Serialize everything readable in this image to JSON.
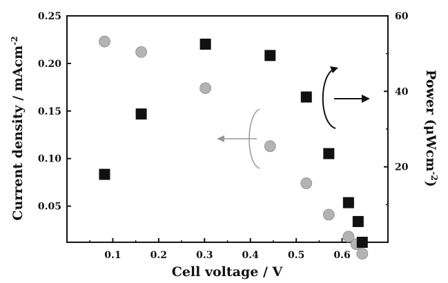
{
  "chart_data": {
    "type": "scatter",
    "xlabel": "Cell voltage / V",
    "ylabel_left": "Current density / mAcm",
    "ylabel_left_sup": "-2",
    "ylabel_right": "Power (μWcm",
    "ylabel_right_sup": "-2",
    "ylabel_right_end": ")",
    "xlim": [
      0.0,
      0.7
    ],
    "ylim_left": [
      0.012,
      0.25
    ],
    "ylim_right": [
      0,
      60
    ],
    "x_ticks": [
      0.1,
      0.2,
      0.3,
      0.4,
      0.5,
      0.6
    ],
    "x_tick_labels": [
      "0.1",
      "0.2",
      "0.3",
      "0.4",
      "0.5",
      "0.6"
    ],
    "y_left_ticks": [
      0.05,
      0.1,
      0.15,
      0.2,
      0.25
    ],
    "y_left_tick_labels": [
      "0.05",
      "0.10",
      "0.15",
      "0.20",
      "0.25"
    ],
    "y_right_ticks": [
      20,
      40,
      60
    ],
    "y_right_tick_labels": [
      "20",
      "40",
      "60"
    ],
    "series": [
      {
        "axis": "left",
        "marker": "circle",
        "color": "#b3b3b3",
        "x": [
          0.082,
          0.162,
          0.302,
          0.443,
          0.522,
          0.571,
          0.614,
          0.631,
          0.644
        ],
        "y": [
          0.223,
          0.212,
          0.174,
          0.113,
          0.074,
          0.041,
          0.018,
          0.01,
          0.0
        ]
      },
      {
        "axis": "right",
        "marker": "square",
        "color": "#111111",
        "x": [
          0.082,
          0.162,
          0.302,
          0.443,
          0.522,
          0.571,
          0.614,
          0.635,
          0.644
        ],
        "y": [
          18,
          34,
          52.5,
          49.5,
          38.5,
          23.5,
          10.5,
          5.5,
          0
        ]
      }
    ],
    "annotations": [
      {
        "type": "arrow-left",
        "target": "left-axis",
        "color": "#999999"
      },
      {
        "type": "arrow-right",
        "target": "right-axis",
        "color": "#111111"
      }
    ],
    "grid": false
  }
}
